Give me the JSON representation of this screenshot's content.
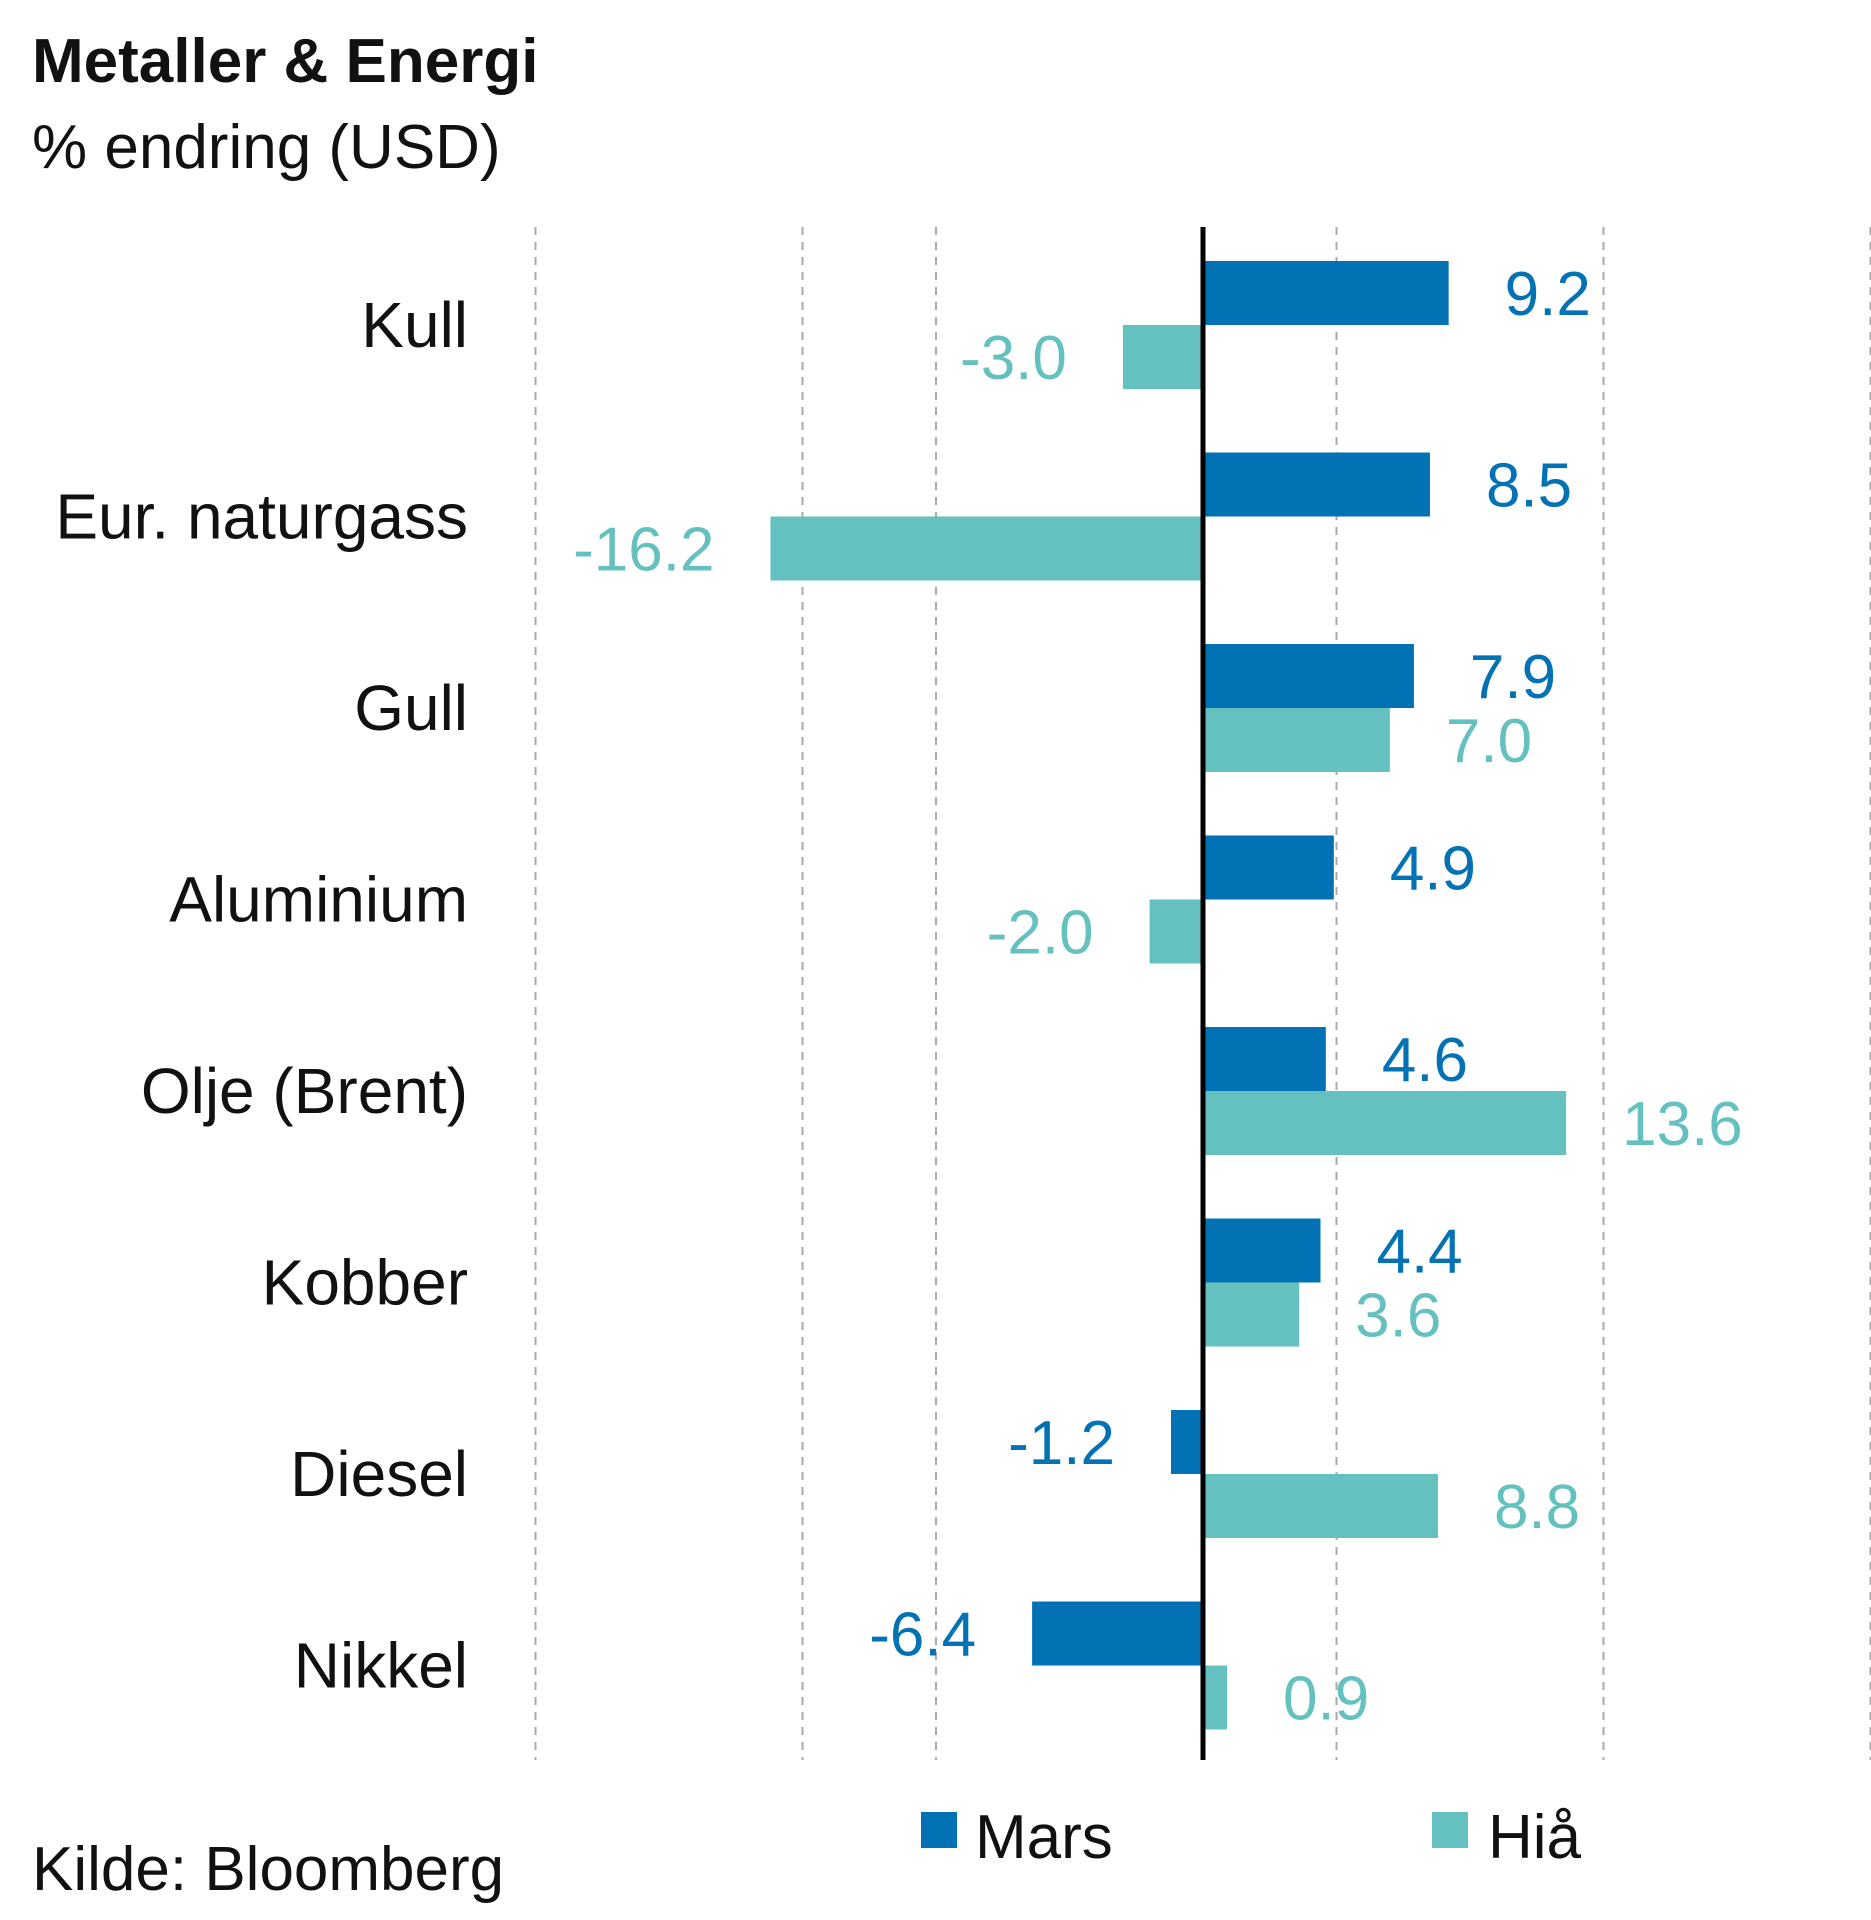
{
  "chart_data": {
    "type": "bar",
    "orientation": "horizontal",
    "title": "Metaller & Energi",
    "subtitle": "% endring (USD)",
    "categories": [
      "Kull",
      "Eur. naturgass",
      "Gull",
      "Aluminium",
      "Olje (Brent)",
      "Kobber",
      "Diesel",
      "Nikkel"
    ],
    "series": [
      {
        "name": "Mars",
        "color": "#0272b4",
        "values": [
          9.2,
          8.5,
          7.9,
          4.9,
          4.6,
          4.4,
          -1.2,
          -6.4
        ],
        "labels": [
          "9.2",
          "8.5",
          "7.9",
          "4.9",
          "4.6",
          "4.4",
          "-1.2",
          "-6.4"
        ]
      },
      {
        "name": "Hiå",
        "color": "#64c1bf",
        "values": [
          -3.0,
          -16.2,
          7.0,
          -2.0,
          13.6,
          3.6,
          8.8,
          0.9
        ],
        "labels": [
          "-3.0",
          "-16.2",
          "7.0",
          "-2.0",
          "13.6",
          "3.6",
          "8.8",
          "0.9"
        ]
      }
    ],
    "xlim": [
      -25,
      25
    ],
    "grid_values": [
      -25,
      -15,
      -10,
      5,
      15,
      25
    ],
    "grid": true,
    "legend_position": "bottom",
    "source": "Kilde: Bloomberg"
  }
}
